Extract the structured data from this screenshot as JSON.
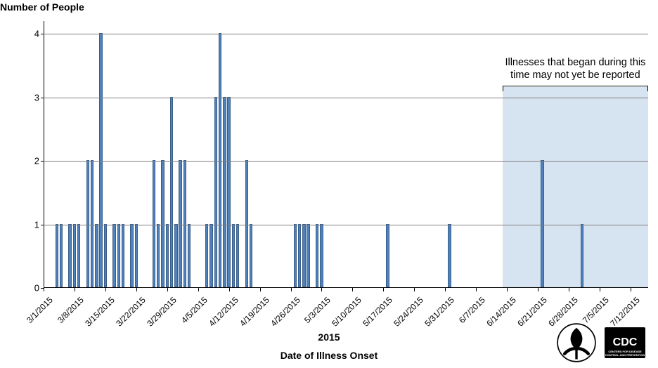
{
  "chart": {
    "type": "bar",
    "y_title": "Number of People",
    "x_title": "Date of Illness Onset",
    "year_label": "2015",
    "title_fontsize": 14,
    "title_fontweight": "bold",
    "label_fontsize": 13,
    "tick_fontsize": 12,
    "annotation_fontsize": 14.5,
    "background_color": "#ffffff",
    "grid_color": "#7f7f7f",
    "axis_color": "#000000",
    "bar_color": "#4f81bd",
    "bar_border_color": "#3a5f8a",
    "bar_width_days": 0.7,
    "ylim": [
      0,
      4.2
    ],
    "yticks": [
      0,
      1,
      2,
      3,
      4
    ],
    "xlim_days": [
      0,
      137
    ],
    "x_start_date": "3/1/2015",
    "x_tick_labels": [
      "3/1/2015",
      "3/8/2015",
      "3/15/2015",
      "3/22/2015",
      "3/29/2015",
      "4/5/2015",
      "4/12/2015",
      "4/19/2015",
      "4/26/2015",
      "5/3/2015",
      "5/10/2015",
      "5/17/2015",
      "5/24/2015",
      "5/31/2015",
      "6/7/2015",
      "6/14/2015",
      "6/21/2015",
      "6/28/2015",
      "7/5/2015",
      "7/12/2015"
    ],
    "x_tick_days": [
      0,
      7,
      14,
      21,
      28,
      35,
      42,
      49,
      56,
      63,
      70,
      77,
      84,
      91,
      98,
      105,
      112,
      119,
      126,
      133
    ],
    "data_days": [
      3,
      4,
      6,
      7,
      8,
      10,
      11,
      12,
      13,
      14,
      16,
      17,
      18,
      20,
      21,
      25,
      26,
      27,
      28,
      29,
      30,
      31,
      32,
      33,
      37,
      38,
      39,
      40,
      41,
      42,
      43,
      44,
      46,
      47,
      57,
      58,
      59,
      60,
      62,
      63,
      78,
      92,
      113,
      122
    ],
    "data_values": [
      1,
      1,
      1,
      1,
      1,
      2,
      2,
      1,
      4,
      1,
      1,
      1,
      1,
      1,
      1,
      2,
      1,
      2,
      1,
      3,
      1,
      2,
      2,
      1,
      1,
      1,
      3,
      4,
      3,
      3,
      1,
      1,
      2,
      1,
      1,
      1,
      1,
      1,
      1,
      1,
      1,
      1,
      2,
      1
    ],
    "shaded_region": {
      "start_day": 104,
      "end_day": 137,
      "height_value": 3.15,
      "color": "#d6e3f0"
    },
    "annotation": {
      "text_line1": "Illnesses that began during this",
      "text_line2": "time may not yet be reported",
      "center_day": 120,
      "bracket_y_value": 3.18,
      "bracket_start_day": 104,
      "bracket_end_day": 137
    }
  },
  "logos": {
    "hhs_alt": "HHS logo",
    "cdc_label": "CDC",
    "cdc_sub": "CENTERS FOR DISEASE CONTROL AND PREVENTION"
  }
}
